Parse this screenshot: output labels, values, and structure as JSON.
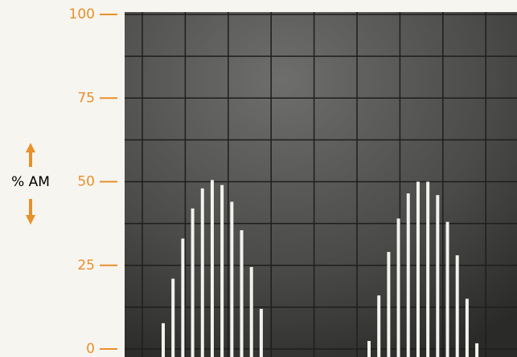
{
  "chart_data": {
    "type": "bar",
    "y_label": "% AM",
    "categories": [
      null,
      null,
      null,
      null,
      null,
      null,
      null,
      null,
      null,
      null,
      null,
      null,
      null,
      null,
      null,
      null,
      null,
      null,
      null,
      null,
      null,
      null,
      null,
      null,
      null,
      null,
      null,
      null,
      null,
      null,
      null,
      null,
      null
    ],
    "values": [
      7.7,
      21,
      33,
      42,
      48,
      50.5,
      49,
      44,
      35.5,
      24.5,
      12,
      null,
      null,
      null,
      null,
      null,
      null,
      null,
      null,
      null,
      null,
      2.4,
      16,
      29,
      39,
      46.5,
      50,
      50,
      46,
      38,
      28,
      15,
      1.7
    ],
    "color": "#f2f2ee",
    "ylim": [
      0,
      100
    ],
    "yticks": [
      0,
      25,
      50,
      75,
      100
    ],
    "tick_color": "#e8902a"
  }
}
